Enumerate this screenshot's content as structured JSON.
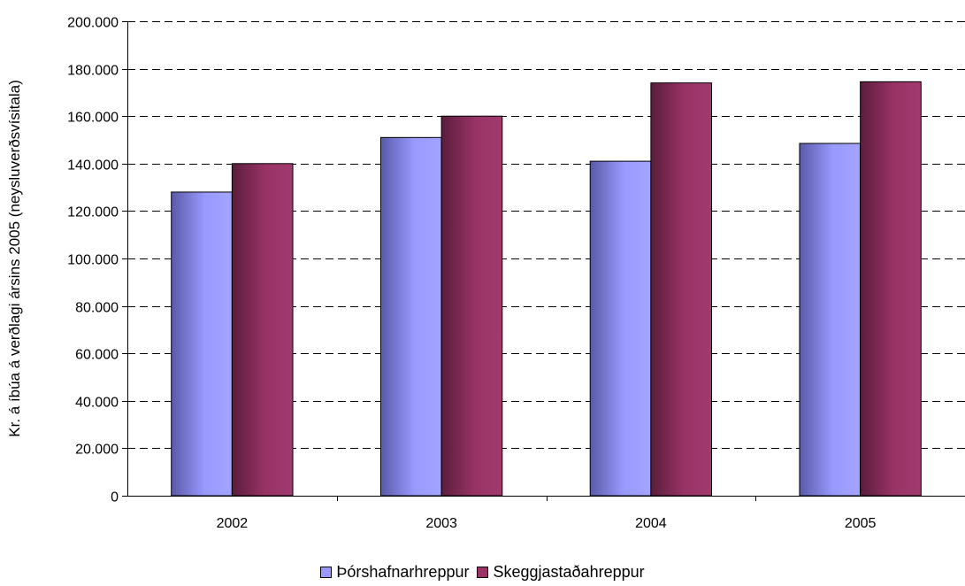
{
  "chart_data": {
    "type": "bar",
    "title": "",
    "xlabel": "",
    "ylabel": "Kr. á íbúa á verðlagi ársins 2005 (neysluverðsvísitala)",
    "categories": [
      "2002",
      "2003",
      "2004",
      "2005"
    ],
    "series": [
      {
        "name": "Þórshafnarhreppur",
        "values": [
          128000,
          151000,
          141000,
          148500
        ],
        "color": "#9999ff"
      },
      {
        "name": "Skeggjastaðahreppur",
        "values": [
          140000,
          160000,
          174000,
          174500
        ],
        "color": "#993366"
      }
    ],
    "ylim": [
      0,
      200000
    ],
    "yticks": [
      0,
      20000,
      40000,
      60000,
      80000,
      100000,
      120000,
      140000,
      160000,
      180000,
      200000
    ],
    "ytick_labels": [
      "0",
      "20.000",
      "40.000",
      "60.000",
      "80.000",
      "100.000",
      "120.000",
      "140.000",
      "160.000",
      "180.000",
      "200.000"
    ],
    "grid": "dashed horizontal",
    "legend_position": "bottom"
  }
}
